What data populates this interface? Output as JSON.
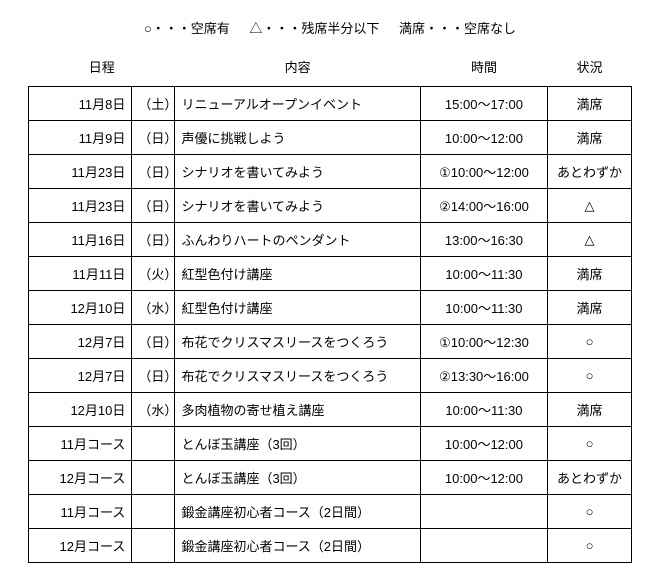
{
  "legend": {
    "open": "○・・・空席有",
    "half": "△・・・残席半分以下",
    "full": "満席・・・空席なし"
  },
  "headers": {
    "date": "日程",
    "desc": "内容",
    "time": "時間",
    "stat": "状況"
  },
  "rows": [
    {
      "date": "11月8日",
      "day": "（土）",
      "desc": "リニューアルオープンイベント",
      "time": "15:00～17:00",
      "stat": "満席"
    },
    {
      "date": "11月9日",
      "day": "（日）",
      "desc": "声優に挑戦しよう",
      "time": "10:00～12:00",
      "stat": "満席"
    },
    {
      "date": "11月23日",
      "day": "（日）",
      "desc": "シナリオを書いてみよう",
      "time": "①10:00～12:00",
      "stat": "あとわずか"
    },
    {
      "date": "11月23日",
      "day": "（日）",
      "desc": "シナリオを書いてみよう",
      "time": "②14:00～16:00",
      "stat": "△"
    },
    {
      "date": "11月16日",
      "day": "（日）",
      "desc": "ふんわりハートのペンダント",
      "time": "13:00～16:30",
      "stat": "△"
    },
    {
      "date": "11月11日",
      "day": "（火）",
      "desc": "紅型色付け講座",
      "time": "10:00～11:30",
      "stat": "満席"
    },
    {
      "date": "12月10日",
      "day": "（水）",
      "desc": "紅型色付け講座",
      "time": "10:00～11:30",
      "stat": "満席"
    },
    {
      "date": "12月7日",
      "day": "（日）",
      "desc": "布花でクリスマスリースをつくろう",
      "time": "①10:00～12:30",
      "stat": "○"
    },
    {
      "date": "12月7日",
      "day": "（日）",
      "desc": "布花でクリスマスリースをつくろう",
      "time": "②13:30～16:00",
      "stat": "○"
    },
    {
      "date": "12月10日",
      "day": "（水）",
      "desc": "多肉植物の寄せ植え講座",
      "time": "10:00～11:30",
      "stat": "満席"
    },
    {
      "date": "11月コース",
      "day": "",
      "desc": "とんぼ玉講座（3回）",
      "time": "10:00～12:00",
      "stat": "○"
    },
    {
      "date": "12月コース",
      "day": "",
      "desc": "とんぼ玉講座（3回）",
      "time": "10:00～12:00",
      "stat": "あとわずか"
    },
    {
      "date": "11月コース",
      "day": "",
      "desc": "鍛金講座初心者コース（2日間）",
      "time": "",
      "stat": "○"
    },
    {
      "date": "12月コース",
      "day": "",
      "desc": "鍛金講座初心者コース（2日間）",
      "time": "",
      "stat": "○"
    }
  ]
}
